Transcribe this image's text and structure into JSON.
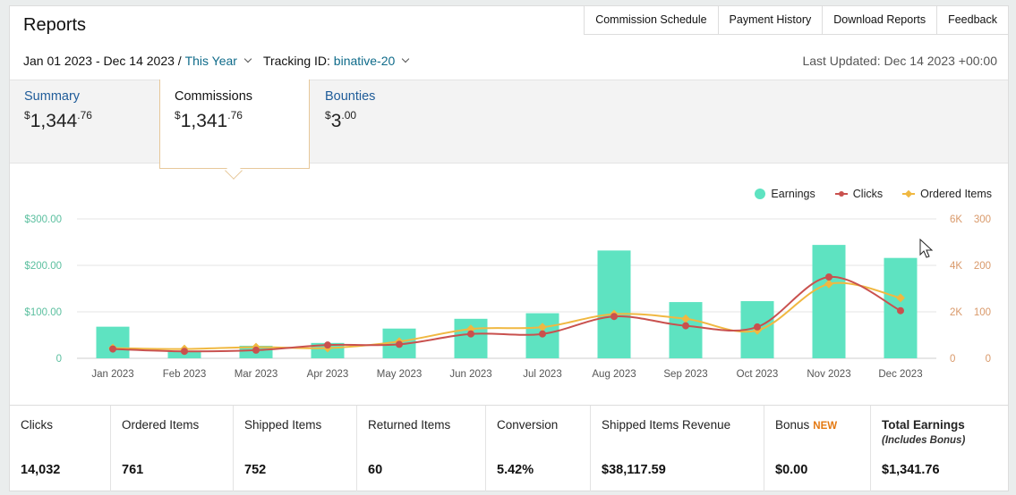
{
  "header": {
    "title": "Reports",
    "nav": [
      "Commission Schedule",
      "Payment History",
      "Download Reports",
      "Feedback"
    ]
  },
  "filters": {
    "date_range": "Jan 01 2023 - Dec 14 2023",
    "separator": "/",
    "period": "This Year",
    "tracking_label": "Tracking ID:",
    "tracking_id": "binative-20",
    "last_updated": "Last Updated: Dec 14 2023 +00:00"
  },
  "tabs": [
    {
      "label": "Summary",
      "currency": "$",
      "amount": "1,344",
      "cents": ".76"
    },
    {
      "label": "Commissions",
      "currency": "$",
      "amount": "1,341",
      "cents": ".76"
    },
    {
      "label": "Bounties",
      "currency": "$",
      "amount": "3",
      "cents": ".00"
    }
  ],
  "legend": {
    "earnings": "Earnings",
    "clicks": "Clicks",
    "ordered": "Ordered Items"
  },
  "colors": {
    "earnings": "#5ee3c1",
    "clicks": "#c9514e",
    "ordered": "#f0b841",
    "left_axis": "#5bbf9f",
    "right_axis": "#d9996a",
    "link": "#0f6b8a",
    "new_badge": "#e47911"
  },
  "chart_data": {
    "type": "bar",
    "categories": [
      "Jan 2023",
      "Feb 2023",
      "Mar 2023",
      "Apr 2023",
      "May 2023",
      "Jun 2023",
      "Jul 2023",
      "Aug 2023",
      "Sep 2023",
      "Oct 2023",
      "Nov 2023",
      "Dec 2023"
    ],
    "series": [
      {
        "name": "Earnings",
        "type": "bar",
        "axis": "left",
        "values": [
          68,
          15,
          27,
          33,
          64,
          85,
          97,
          232,
          121,
          123,
          244,
          216
        ]
      },
      {
        "name": "Clicks",
        "type": "line",
        "axis": "right1",
        "values": [
          400,
          300,
          350,
          570,
          600,
          1050,
          1050,
          1800,
          1400,
          1350,
          3500,
          2050
        ]
      },
      {
        "name": "Ordered Items",
        "type": "line",
        "axis": "right2",
        "values": [
          22,
          20,
          24,
          22,
          36,
          63,
          67,
          95,
          85,
          60,
          160,
          130
        ]
      }
    ],
    "axes": {
      "left": {
        "ticks": [
          "0",
          "$100.00",
          "$200.00",
          "$300.00"
        ],
        "max": 300
      },
      "right1": {
        "ticks": [
          "0",
          "2K",
          "4K",
          "6K"
        ],
        "max": 6000
      },
      "right2": {
        "ticks": [
          "0",
          "100",
          "200",
          "300"
        ],
        "max": 300
      }
    },
    "legend_position": "top-right",
    "grid": true
  },
  "stats": [
    {
      "label": "Clicks",
      "value": "14,032"
    },
    {
      "label": "Ordered Items",
      "value": "761"
    },
    {
      "label": "Shipped Items",
      "value": "752"
    },
    {
      "label": "Returned Items",
      "value": "60"
    },
    {
      "label": "Conversion",
      "value": "5.42%"
    },
    {
      "label": "Shipped Items Revenue",
      "value": "$38,117.59"
    },
    {
      "label": "Bonus",
      "badge": "NEW",
      "value": "$0.00"
    },
    {
      "label": "Total Earnings",
      "sub": "(Includes Bonus)",
      "value": "$1,341.76"
    }
  ]
}
